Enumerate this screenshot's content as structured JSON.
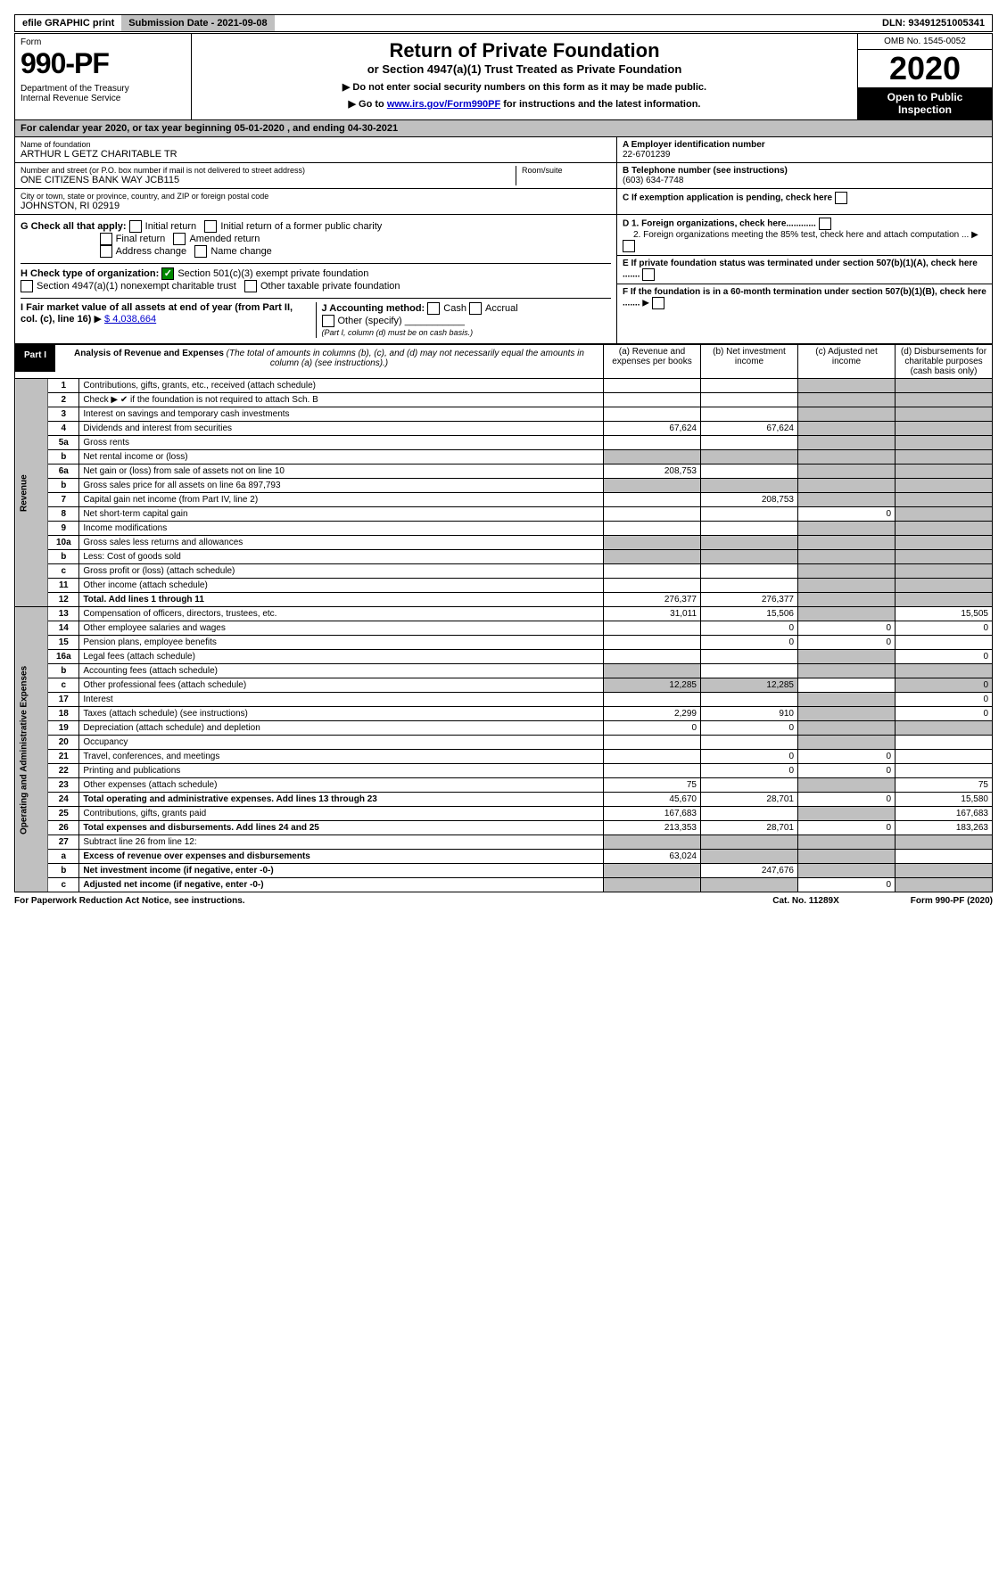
{
  "top": {
    "efile": "efile GRAPHIC print",
    "subdate_label": "Submission Date - 2021-09-08",
    "dln": "DLN: 93491251005341"
  },
  "header": {
    "form_label": "Form",
    "form_number": "990-PF",
    "dept": "Department of the Treasury\nInternal Revenue Service",
    "title": "Return of Private Foundation",
    "subtitle": "or Section 4947(a)(1) Trust Treated as Private Foundation",
    "notice1": "▶ Do not enter social security numbers on this form as it may be made public.",
    "notice2_pre": "▶ Go to ",
    "notice2_link": "www.irs.gov/Form990PF",
    "notice2_post": " for instructions and the latest information.",
    "omb": "OMB No. 1545-0052",
    "year": "2020",
    "open": "Open to Public Inspection"
  },
  "cal": "For calendar year 2020, or tax year beginning 05-01-2020            , and ending 04-30-2021",
  "entity": {
    "name_label": "Name of foundation",
    "name": "ARTHUR L GETZ CHARITABLE TR",
    "street_label": "Number and street (or P.O. box number if mail is not delivered to street address)",
    "street": "ONE CITIZENS BANK WAY JCB115",
    "room_label": "Room/suite",
    "city_label": "City or town, state or province, country, and ZIP or foreign postal code",
    "city": "JOHNSTON, RI  02919",
    "a_label": "A Employer identification number",
    "a_val": "22-6701239",
    "b_label": "B Telephone number (see instructions)",
    "b_val": "(603) 634-7748",
    "c_label": "C If exemption application is pending, check here",
    "d1": "D 1. Foreign organizations, check here............",
    "d2": "2. Foreign organizations meeting the 85% test, check here and attach computation ...",
    "e": "E  If private foundation status was terminated under section 507(b)(1)(A), check here .......",
    "f": "F  If the foundation is in a 60-month termination under section 507(b)(1)(B), check here ......."
  },
  "g": {
    "label": "G Check all that apply:",
    "items": [
      "Initial return",
      "Initial return of a former public charity",
      "Final return",
      "Amended return",
      "Address change",
      "Name change"
    ]
  },
  "h": {
    "label": "H Check type of organization:",
    "opt1": "Section 501(c)(3) exempt private foundation",
    "opt2": "Section 4947(a)(1) nonexempt charitable trust",
    "opt3": "Other taxable private foundation"
  },
  "i": {
    "label": "I Fair market value of all assets at end of year (from Part II, col. (c), line 16)",
    "val": "$  4,038,664"
  },
  "j": {
    "label": "J Accounting method:",
    "cash": "Cash",
    "accrual": "Accrual",
    "other": "Other (specify)",
    "note": "(Part I, column (d) must be on cash basis.)"
  },
  "part1": {
    "label": "Part I",
    "title": "Analysis of Revenue and Expenses",
    "note": "(The total of amounts in columns (b), (c), and (d) may not necessarily equal the amounts in column (a) (see instructions).)",
    "cols": {
      "a": "(a)   Revenue and expenses per books",
      "b": "(b)   Net investment income",
      "c": "(c)   Adjusted net income",
      "d": "(d)  Disbursements for charitable purposes (cash basis only)"
    }
  },
  "side": {
    "rev": "Revenue",
    "exp": "Operating and Administrative Expenses"
  },
  "rows": [
    {
      "n": "1",
      "d": "Contributions, gifts, grants, etc., received (attach schedule)"
    },
    {
      "n": "2",
      "d": "Check ▶ ✔ if the foundation is not required to attach Sch. B"
    },
    {
      "n": "3",
      "d": "Interest on savings and temporary cash investments"
    },
    {
      "n": "4",
      "d": "Dividends and interest from securities",
      "a": "67,624",
      "b": "67,624"
    },
    {
      "n": "5a",
      "d": "Gross rents"
    },
    {
      "n": "b",
      "d": "Net rental income or (loss)"
    },
    {
      "n": "6a",
      "d": "Net gain or (loss) from sale of assets not on line 10",
      "a": "208,753"
    },
    {
      "n": "b",
      "d": "Gross sales price for all assets on line 6a          897,793"
    },
    {
      "n": "7",
      "d": "Capital gain net income (from Part IV, line 2)",
      "b": "208,753"
    },
    {
      "n": "8",
      "d": "Net short-term capital gain",
      "c": "0"
    },
    {
      "n": "9",
      "d": "Income modifications"
    },
    {
      "n": "10a",
      "d": "Gross sales less returns and allowances"
    },
    {
      "n": "b",
      "d": "Less: Cost of goods sold"
    },
    {
      "n": "c",
      "d": "Gross profit or (loss) (attach schedule)"
    },
    {
      "n": "11",
      "d": "Other income (attach schedule)"
    },
    {
      "n": "12",
      "d": "Total. Add lines 1 through 11",
      "a": "276,377",
      "b": "276,377",
      "bold": true
    },
    {
      "n": "13",
      "d": "Compensation of officers, directors, trustees, etc.",
      "a": "31,011",
      "b": "15,506",
      "dd": "15,505"
    },
    {
      "n": "14",
      "d": "Other employee salaries and wages",
      "b": "0",
      "c": "0",
      "dd": "0"
    },
    {
      "n": "15",
      "d": "Pension plans, employee benefits",
      "b": "0",
      "c": "0"
    },
    {
      "n": "16a",
      "d": "Legal fees (attach schedule)",
      "dd": "0"
    },
    {
      "n": "b",
      "d": "Accounting fees (attach schedule)"
    },
    {
      "n": "c",
      "d": "Other professional fees (attach schedule)",
      "a": "12,285",
      "b": "12,285",
      "dd": "0"
    },
    {
      "n": "17",
      "d": "Interest",
      "dd": "0"
    },
    {
      "n": "18",
      "d": "Taxes (attach schedule) (see instructions)",
      "a": "2,299",
      "b": "910",
      "dd": "0"
    },
    {
      "n": "19",
      "d": "Depreciation (attach schedule) and depletion",
      "a": "0",
      "b": "0"
    },
    {
      "n": "20",
      "d": "Occupancy"
    },
    {
      "n": "21",
      "d": "Travel, conferences, and meetings",
      "b": "0",
      "c": "0"
    },
    {
      "n": "22",
      "d": "Printing and publications",
      "b": "0",
      "c": "0"
    },
    {
      "n": "23",
      "d": "Other expenses (attach schedule)",
      "a": "75",
      "dd": "75"
    },
    {
      "n": "24",
      "d": "Total operating and administrative expenses. Add lines 13 through 23",
      "a": "45,670",
      "b": "28,701",
      "c": "0",
      "dd": "15,580",
      "bold": true
    },
    {
      "n": "25",
      "d": "Contributions, gifts, grants paid",
      "a": "167,683",
      "dd": "167,683"
    },
    {
      "n": "26",
      "d": "Total expenses and disbursements. Add lines 24 and 25",
      "a": "213,353",
      "b": "28,701",
      "c": "0",
      "dd": "183,263",
      "bold": true
    },
    {
      "n": "27",
      "d": "Subtract line 26 from line 12:"
    },
    {
      "n": "a",
      "d": "Excess of revenue over expenses and disbursements",
      "a": "63,024",
      "bold": true
    },
    {
      "n": "b",
      "d": "Net investment income (if negative, enter -0-)",
      "b": "247,676",
      "bold": true
    },
    {
      "n": "c",
      "d": "Adjusted net income (if negative, enter -0-)",
      "c": "0",
      "bold": true
    }
  ],
  "footer": {
    "pra": "For Paperwork Reduction Act Notice, see instructions.",
    "cat": "Cat. No. 11289X",
    "form": "Form 990-PF (2020)"
  },
  "shading": {
    "revenue_d_shaded": [
      1,
      2,
      3,
      4,
      5,
      6,
      7,
      8,
      9,
      10,
      11,
      12,
      13,
      14,
      15,
      16
    ],
    "comment": "column d shaded for revenue rows, column c shaded for some"
  }
}
